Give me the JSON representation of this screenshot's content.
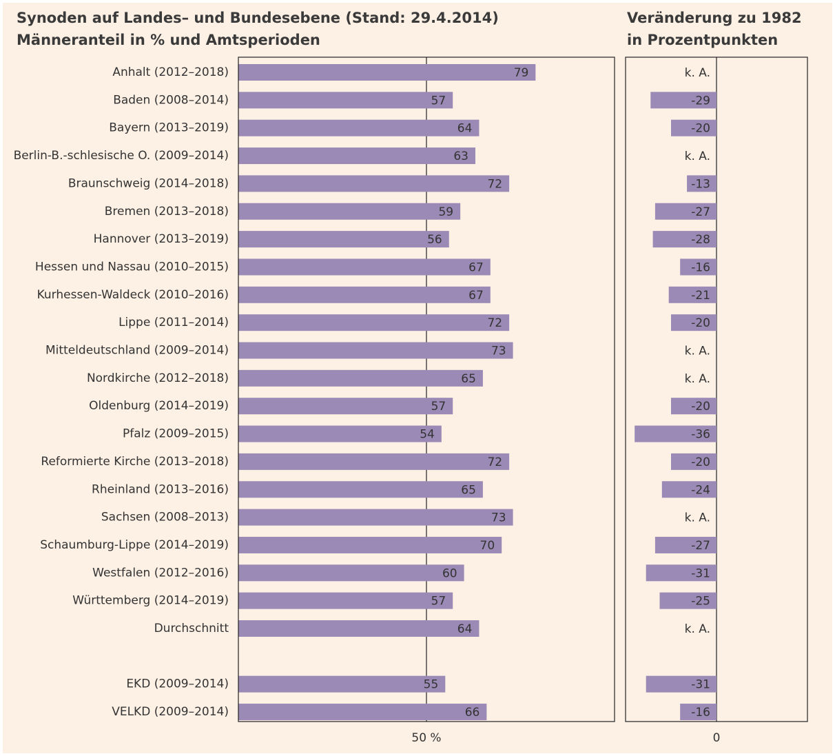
{
  "chart_data": [
    {
      "type": "bar",
      "orientation": "horizontal",
      "title": "Synoden auf Landes– und Bundesebene (Stand: 29.4.2014)",
      "subtitle": "Männeranteil in % und Amtsperioden",
      "categories": [
        "Anhalt (2012–2018)",
        "Baden (2008–2014)",
        "Bayern (2013–2019)",
        "Berlin-B.-schlesische O. (2009–2014)",
        "Braunschweig (2014–2018)",
        "Bremen (2013–2018)",
        "Hannover (2013–2019)",
        "Hessen und Nassau (2010–2015)",
        "Kurhessen-Waldeck (2010–2016)",
        "Lippe (2011–2014)",
        "Mitteldeutschland (2009–2014)",
        "Nordkirche (2012–2018)",
        "Oldenburg (2014–2019)",
        "Pfalz (2009–2015)",
        "Reformierte Kirche (2013–2018)",
        "Rheinland (2013–2016)",
        "Sachsen (2008–2013)",
        "Schaumburg-Lippe (2014–2019)",
        "Westfalen (2012–2016)",
        "Württemberg (2014–2019)",
        "Durchschnitt",
        null,
        "EKD (2009–2014)",
        "VELKD (2009–2014)"
      ],
      "values": [
        79,
        57,
        64,
        63,
        72,
        59,
        56,
        67,
        67,
        72,
        73,
        65,
        57,
        54,
        72,
        65,
        73,
        70,
        60,
        57,
        64,
        null,
        55,
        66
      ],
      "color": "#9b8ab5",
      "xlim": [
        0,
        100
      ],
      "xticks": [
        {
          "value": 50,
          "label": "50 %"
        }
      ],
      "grid": true
    },
    {
      "type": "bar",
      "orientation": "horizontal",
      "title": "Veränderung zu 1982",
      "subtitle": "in Prozentpunkten",
      "values": [
        null,
        -29,
        -20,
        null,
        -13,
        -27,
        -28,
        -16,
        -21,
        -20,
        null,
        null,
        -20,
        -36,
        -20,
        -24,
        null,
        -27,
        -31,
        -25,
        null,
        null,
        -31,
        -16
      ],
      "value_labels": [
        "k. A.",
        "-29",
        "-20",
        "k. A.",
        "-13",
        "-27",
        "-28",
        "-16",
        "-21",
        "-20",
        "k. A.",
        "k. A.",
        "-20",
        "-36",
        "-20",
        "-24",
        "k. A.",
        "-27",
        "-31",
        "-25",
        "k. A.",
        null,
        "-31",
        "-16"
      ],
      "color": "#9b8ab5",
      "xlim": [
        -40,
        40
      ],
      "xticks": [
        0
      ],
      "grid": true
    }
  ]
}
